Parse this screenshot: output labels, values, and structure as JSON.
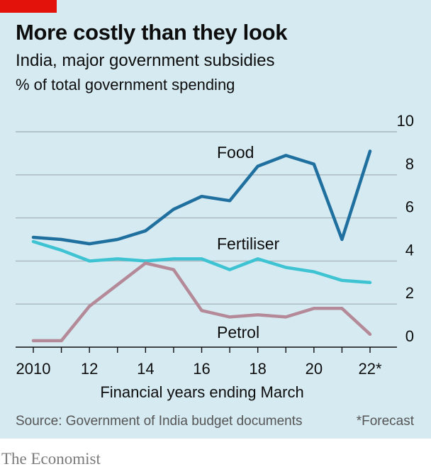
{
  "header": {
    "title": "More costly than they look",
    "subtitle": "India, major government subsidies",
    "units": "% of total government spending"
  },
  "footer": {
    "source": "Source: Government of India budget documents",
    "footnote": "*Forecast",
    "brand": "The Economist"
  },
  "colors": {
    "background": "#d6eaf2",
    "brand_red": "#e3120b",
    "food": "#1f6f9f",
    "fertiliser": "#3ec3d3",
    "petrol": "#b48a98"
  },
  "chart_data": {
    "type": "line",
    "title": "More costly than they look",
    "subtitle": "India, major government subsidies",
    "xlabel": "Financial years ending March",
    "ylabel": "% of total government spending",
    "x": [
      2010,
      2011,
      2012,
      2013,
      2014,
      2015,
      2016,
      2017,
      2018,
      2019,
      2020,
      2021,
      2022
    ],
    "x_ticks": [
      2010,
      2012,
      2014,
      2016,
      2018,
      2020,
      2022
    ],
    "x_tick_labels": [
      "2010",
      "12",
      "14",
      "16",
      "18",
      "20",
      "22*"
    ],
    "ylim": [
      0,
      10
    ],
    "y_ticks": [
      0,
      2,
      4,
      6,
      8,
      10
    ],
    "y_tick_labels": [
      "0",
      "2",
      "4",
      "6",
      "8",
      "10"
    ],
    "y_axis_side": "right",
    "grid": true,
    "series": [
      {
        "name": "Food",
        "color": "#1f6f9f",
        "values": [
          5.1,
          5.0,
          4.8,
          5.0,
          5.4,
          6.4,
          7.0,
          6.8,
          8.4,
          8.9,
          8.5,
          5.0,
          9.1
        ]
      },
      {
        "name": "Fertiliser",
        "color": "#3ec3d3",
        "values": [
          4.9,
          4.5,
          4.0,
          4.1,
          4.0,
          4.1,
          4.1,
          3.6,
          4.1,
          3.7,
          3.5,
          3.1,
          3.0
        ]
      },
      {
        "name": "Petrol",
        "color": "#b48a98",
        "values": [
          0.3,
          0.3,
          1.9,
          2.9,
          3.9,
          3.6,
          1.7,
          1.4,
          1.5,
          1.4,
          1.8,
          1.8,
          0.6
        ]
      }
    ]
  }
}
